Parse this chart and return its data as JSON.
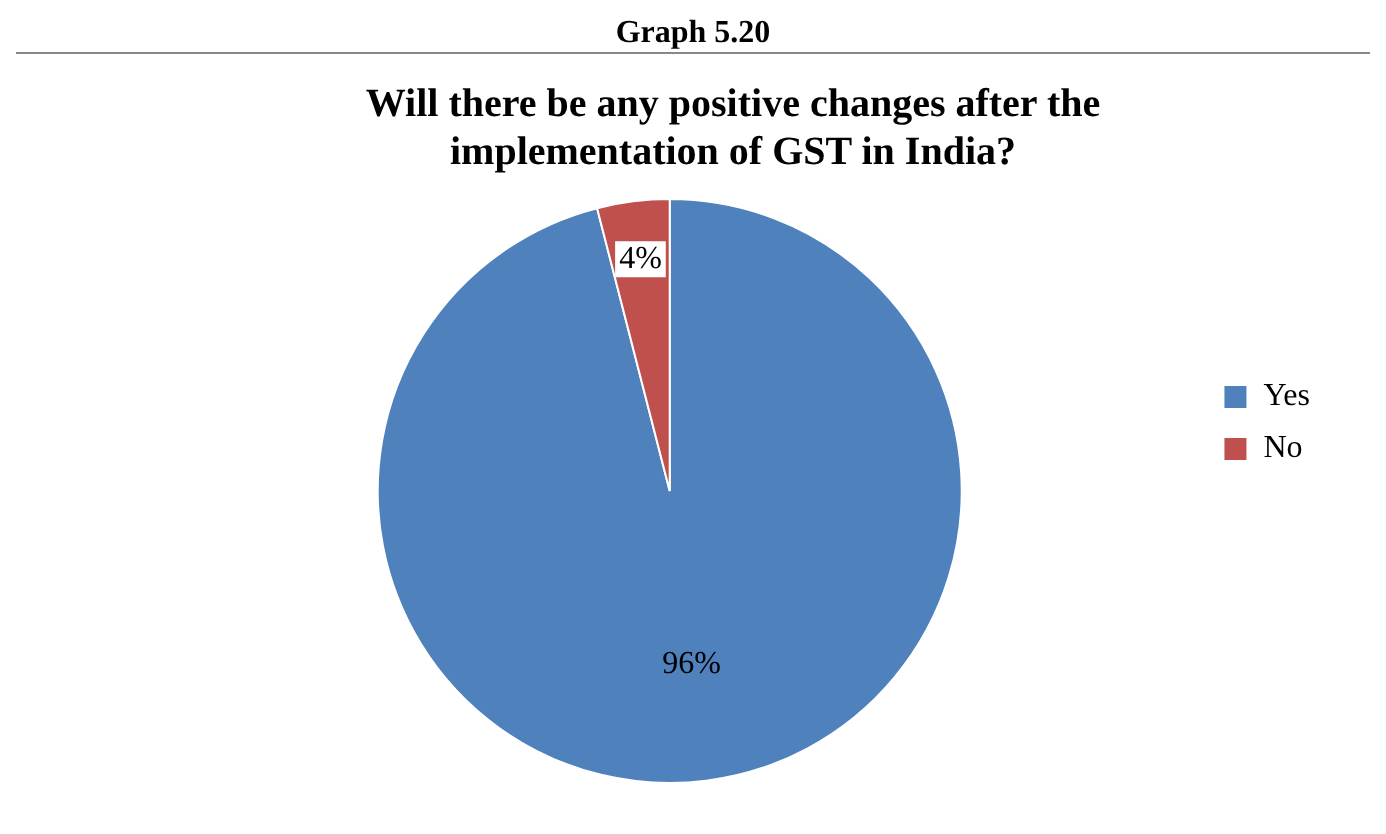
{
  "chart_data": {
    "type": "pie",
    "title": "Will there be any positive changes after the implementation of GST in India?",
    "annotations": [
      "Graph 5.20"
    ],
    "categories": [
      "Yes",
      "No"
    ],
    "values": [
      96,
      4
    ],
    "colors": [
      "#4f81bd",
      "#c0504d"
    ],
    "value_labels": [
      "96%",
      "4%"
    ],
    "legend": "right"
  }
}
